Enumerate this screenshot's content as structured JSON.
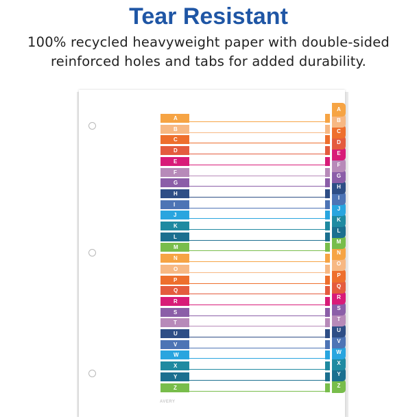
{
  "headline": "Tear Resistant",
  "subtext": {
    "line1": "100% recycled heavyweight paper with double-sided",
    "line2": "reinforced holes and tabs for added durability."
  },
  "brand": "AVERY",
  "tabs": [
    {
      "letter": "A",
      "color": "#f6a444"
    },
    {
      "letter": "B",
      "color": "#f7b883"
    },
    {
      "letter": "C",
      "color": "#ee6f2d"
    },
    {
      "letter": "D",
      "color": "#e45b3e"
    },
    {
      "letter": "E",
      "color": "#d81b78"
    },
    {
      "letter": "F",
      "color": "#b78ab9"
    },
    {
      "letter": "G",
      "color": "#8b5ea8"
    },
    {
      "letter": "H",
      "color": "#2e4e86"
    },
    {
      "letter": "I",
      "color": "#4d74b5"
    },
    {
      "letter": "J",
      "color": "#29a5df"
    },
    {
      "letter": "K",
      "color": "#1f8aa1"
    },
    {
      "letter": "L",
      "color": "#1b6f8f"
    },
    {
      "letter": "M",
      "color": "#78bd4b"
    },
    {
      "letter": "N",
      "color": "#f6a444"
    },
    {
      "letter": "O",
      "color": "#f7b883"
    },
    {
      "letter": "P",
      "color": "#ee6f2d"
    },
    {
      "letter": "Q",
      "color": "#e45b3e"
    },
    {
      "letter": "R",
      "color": "#d81b78"
    },
    {
      "letter": "S",
      "color": "#8b5ea8"
    },
    {
      "letter": "T",
      "color": "#b78ab9"
    },
    {
      "letter": "U",
      "color": "#2e4e86"
    },
    {
      "letter": "V",
      "color": "#4d74b5"
    },
    {
      "letter": "W",
      "color": "#29a5df"
    },
    {
      "letter": "X",
      "color": "#1f8aa1"
    },
    {
      "letter": "Y",
      "color": "#1b6f8f"
    },
    {
      "letter": "Z",
      "color": "#78bd4b"
    }
  ]
}
